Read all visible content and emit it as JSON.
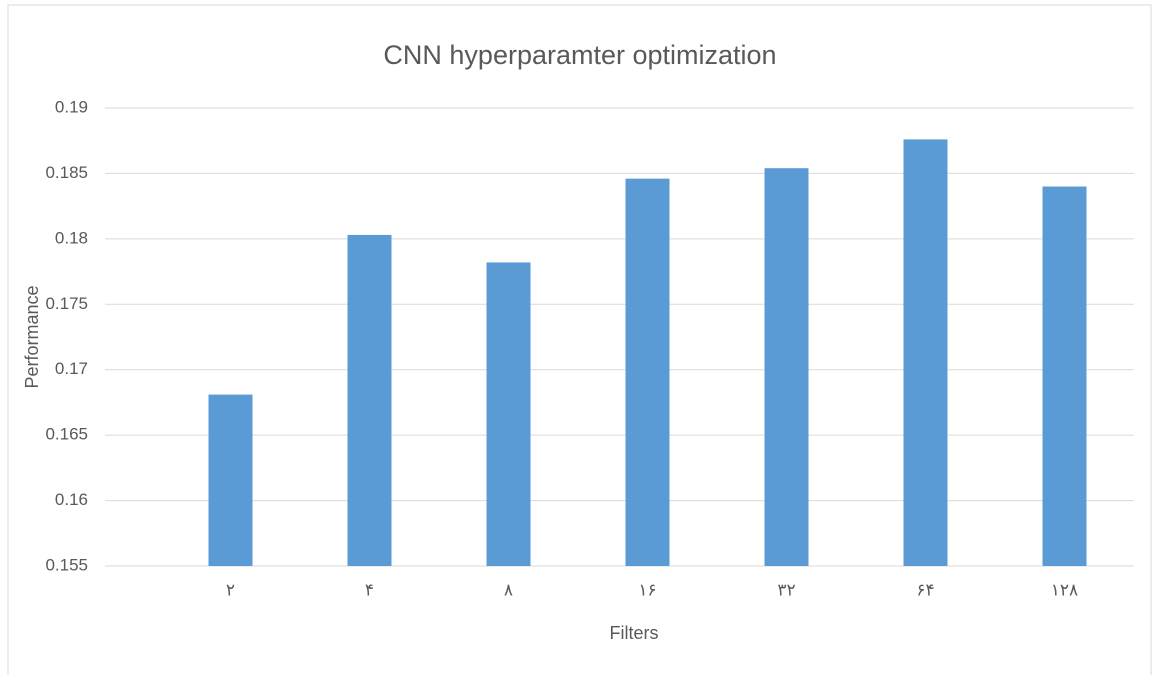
{
  "chart_data": {
    "type": "bar",
    "title": "CNN hyperparamter optimization",
    "x_label": "Filters",
    "y_label": "Performance",
    "categories": [
      "۲",
      "۴",
      "۸",
      "۱۶",
      "۳۲",
      "۶۴",
      "۱۲۸"
    ],
    "values": [
      0.1681,
      0.1803,
      0.1782,
      0.1846,
      0.1854,
      0.1876,
      0.184
    ],
    "color": "#5b9bd5",
    "ylim": [
      0.155,
      0.19
    ],
    "yticks": [
      0.155,
      0.16,
      0.165,
      0.17,
      0.175,
      0.18,
      0.185,
      0.19
    ],
    "grid": true
  }
}
